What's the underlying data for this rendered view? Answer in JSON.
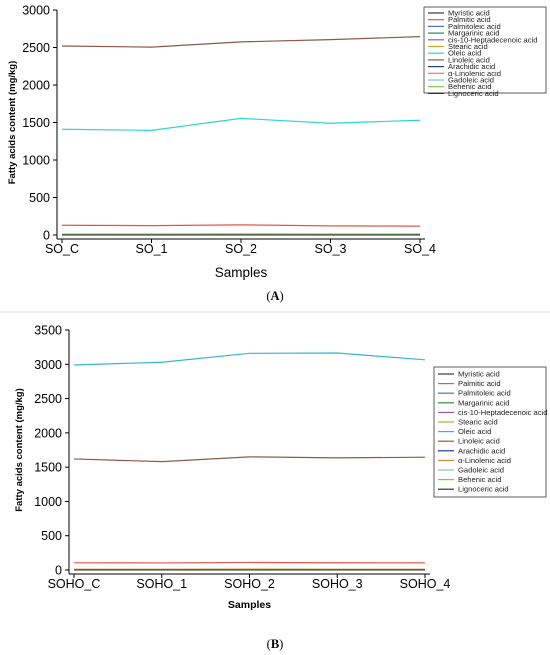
{
  "chart_data": [
    {
      "type": "line",
      "panel": "A",
      "caption_text": "A",
      "categories": [
        "SO_C",
        "SO_1",
        "SO_2",
        "SO_3",
        "SO_4"
      ],
      "ylabel": "Fatty acids content (mg/kg)",
      "xlabel": "Samples",
      "ylim": [
        0,
        3000
      ],
      "yticks": [
        0,
        500,
        1000,
        1500,
        2000,
        2500,
        3000
      ],
      "grid": false,
      "legend_position": "top-right",
      "series": [
        {
          "name": "Myristic acid",
          "color": "#3a3a3a",
          "values": [
            3,
            3,
            3,
            3,
            3
          ]
        },
        {
          "name": "Palmitic acid",
          "color": "#e8554e",
          "values": [
            130,
            125,
            135,
            122,
            118
          ]
        },
        {
          "name": "Palmitoleic acid",
          "color": "#4a6fd6",
          "values": [
            2,
            2,
            2,
            2,
            2
          ]
        },
        {
          "name": "Margarinic acid",
          "color": "#2e8b57",
          "values": [
            2,
            2,
            2,
            2,
            2
          ]
        },
        {
          "name": "cis-10-Heptadecenoic acid",
          "color": "#9b59b6",
          "values": [
            1,
            1,
            1,
            1,
            1
          ]
        },
        {
          "name": "Stearic acid",
          "color": "#c9a227",
          "values": [
            12,
            12,
            13,
            12,
            12
          ]
        },
        {
          "name": "Oleic acid",
          "color": "#2fd3d3",
          "values": [
            1410,
            1395,
            1555,
            1490,
            1530
          ]
        },
        {
          "name": "Linoleic acid",
          "color": "#8b5a4a",
          "values": [
            2520,
            2505,
            2575,
            2605,
            2645
          ]
        },
        {
          "name": "Arachidic acid",
          "color": "#1f3a93",
          "values": [
            3,
            3,
            3,
            3,
            3
          ]
        },
        {
          "name": "α-Linolenic acid",
          "color": "#d98b3a",
          "values": [
            5,
            5,
            5,
            5,
            5
          ]
        },
        {
          "name": "Gadoleic acid",
          "color": "#8fb8de",
          "values": [
            3,
            3,
            3,
            3,
            3
          ]
        },
        {
          "name": "Behenic acid",
          "color": "#7ac943",
          "values": [
            4,
            4,
            4,
            4,
            4
          ]
        },
        {
          "name": "Lignoceric acid",
          "color": "#333333",
          "values": [
            1,
            1,
            1,
            1,
            1
          ]
        }
      ]
    },
    {
      "type": "line",
      "panel": "B",
      "caption_text": "B",
      "categories": [
        "SOHO_C",
        "SOHO_1",
        "SOHO_2",
        "SOHO_3",
        "SOHO_4"
      ],
      "ylabel": "Fatty acids content (mg/kg)",
      "xlabel": "Samples",
      "ylim": [
        0,
        3500
      ],
      "yticks": [
        0,
        500,
        1000,
        1500,
        2000,
        2500,
        3000,
        3500
      ],
      "grid": false,
      "legend_position": "right",
      "series": [
        {
          "name": "Myristic acid",
          "color": "#3a3a3a",
          "values": [
            3,
            3,
            3,
            3,
            3
          ]
        },
        {
          "name": "Palmitic acid",
          "color": "#e8554e",
          "values": [
            105,
            103,
            110,
            106,
            104
          ]
        },
        {
          "name": "Palmitoleic acid",
          "color": "#4a6fd6",
          "values": [
            2,
            2,
            2,
            2,
            2
          ]
        },
        {
          "name": "Margarinic acid",
          "color": "#2e8b57",
          "values": [
            2,
            2,
            2,
            2,
            2
          ]
        },
        {
          "name": "cis-10-Heptadecenoic acid",
          "color": "#9b59b6",
          "values": [
            1,
            1,
            1,
            1,
            1
          ]
        },
        {
          "name": "Stearic acid",
          "color": "#c9a227",
          "values": [
            12,
            12,
            13,
            12,
            12
          ]
        },
        {
          "name": "Oleic acid",
          "color": "#36b5d8",
          "values": [
            2990,
            3030,
            3160,
            3165,
            3065
          ]
        },
        {
          "name": "Linoleic acid",
          "color": "#8b5a4a",
          "values": [
            1620,
            1580,
            1650,
            1635,
            1645
          ]
        },
        {
          "name": "Arachidic acid",
          "color": "#1f3a93",
          "values": [
            3,
            3,
            3,
            3,
            3
          ]
        },
        {
          "name": "α-Linolenic acid",
          "color": "#d98b3a",
          "values": [
            5,
            5,
            5,
            5,
            5
          ]
        },
        {
          "name": "Gadoleic acid",
          "color": "#8fb8de",
          "values": [
            3,
            3,
            3,
            3,
            3
          ]
        },
        {
          "name": "Behenic acid",
          "color": "#7ac943",
          "values": [
            4,
            4,
            4,
            4,
            4
          ]
        },
        {
          "name": "Lignoceric acid",
          "color": "#333333",
          "values": [
            1,
            1,
            1,
            1,
            1
          ]
        }
      ]
    }
  ]
}
